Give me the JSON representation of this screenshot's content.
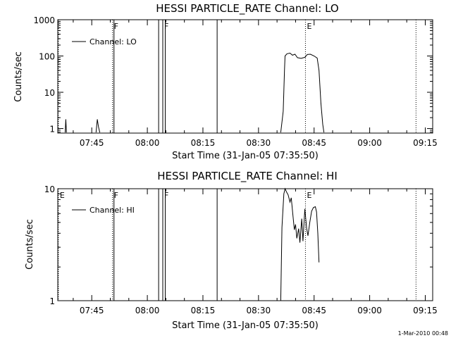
{
  "stamp": "1-Mar-2010 00:48",
  "chart_data": [
    {
      "type": "line",
      "title": "HESSI PARTICLE_RATE Channel: LO",
      "xlabel": "Start Time (31-Jan-05 07:35:50)",
      "ylabel": "Counts/sec",
      "yscale": "log",
      "xlim": [
        "07:35:50",
        "09:17:00"
      ],
      "ylim": [
        0.75,
        1000
      ],
      "yticks": [
        1,
        10,
        100,
        1000
      ],
      "ytick_labels": [
        "1",
        "10",
        "100",
        "1000"
      ],
      "xticks": [
        "07:45",
        "08:00",
        "08:15",
        "08:30",
        "08:45",
        "09:00",
        "09:15"
      ],
      "legend": {
        "position": "top-left",
        "entries": [
          "Channel: LO"
        ]
      },
      "color": "#000000",
      "markers": [
        {
          "time": "07:36:00",
          "label": "",
          "style": "dotted"
        },
        {
          "time": "07:50:36",
          "label": "F",
          "style": "dotted"
        },
        {
          "time": "07:51:00",
          "label": "",
          "style": "solid"
        },
        {
          "time": "08:03:03",
          "label": "",
          "style": "solid"
        },
        {
          "time": "08:04:10",
          "label": "F",
          "style": "solid"
        },
        {
          "time": "08:04:50",
          "label": "",
          "style": "solid"
        },
        {
          "time": "08:18:50",
          "label": "",
          "style": "solid"
        },
        {
          "time": "08:42:40",
          "label": "E",
          "style": "dotted"
        },
        {
          "time": "09:12:30",
          "label": "",
          "style": "dotted"
        }
      ],
      "series": [
        {
          "name": "Channel: LO",
          "segments": [
            [
              {
                "x": "07:37:50",
                "y": 0.78
              },
              {
                "x": "07:38:00",
                "y": 1.8
              },
              {
                "x": "07:38:10",
                "y": 0.78
              }
            ],
            [
              {
                "x": "07:46:10",
                "y": 0.78
              },
              {
                "x": "07:46:30",
                "y": 1.8
              },
              {
                "x": "07:46:50",
                "y": 1.1
              },
              {
                "x": "07:47:10",
                "y": 0.78
              }
            ],
            [
              {
                "x": "08:36:00",
                "y": 0.78
              },
              {
                "x": "08:36:40",
                "y": 3
              },
              {
                "x": "08:37:00",
                "y": 40
              },
              {
                "x": "08:37:10",
                "y": 100
              },
              {
                "x": "08:37:40",
                "y": 115
              },
              {
                "x": "08:38:30",
                "y": 120
              },
              {
                "x": "08:39:10",
                "y": 105
              },
              {
                "x": "08:39:50",
                "y": 112
              },
              {
                "x": "08:40:30",
                "y": 90
              },
              {
                "x": "08:41:30",
                "y": 86
              },
              {
                "x": "08:42:30",
                "y": 92
              },
              {
                "x": "08:43:10",
                "y": 110
              },
              {
                "x": "08:44:00",
                "y": 112
              },
              {
                "x": "08:45:00",
                "y": 100
              },
              {
                "x": "08:45:50",
                "y": 88
              },
              {
                "x": "08:46:20",
                "y": 40
              },
              {
                "x": "08:46:50",
                "y": 5
              },
              {
                "x": "08:47:20",
                "y": 1.3
              },
              {
                "x": "08:47:40",
                "y": 0.78
              }
            ]
          ]
        }
      ]
    },
    {
      "type": "line",
      "title": "HESSI PARTICLE_RATE Channel: HI",
      "xlabel": "Start Time (31-Jan-05 07:35:50)",
      "ylabel": "Counts/sec",
      "yscale": "log",
      "xlim": [
        "07:35:50",
        "09:17:00"
      ],
      "ylim": [
        1,
        10
      ],
      "yticks": [
        1,
        10
      ],
      "ytick_labels": [
        "1",
        "10"
      ],
      "xticks": [
        "07:45",
        "08:00",
        "08:15",
        "08:30",
        "08:45",
        "09:00",
        "09:15"
      ],
      "legend": {
        "position": "top-left",
        "entries": [
          "Channel: HI"
        ]
      },
      "color": "#000000",
      "markers": [
        {
          "time": "07:36:00",
          "label": "E",
          "style": "dotted"
        },
        {
          "time": "07:50:36",
          "label": "F",
          "style": "dotted"
        },
        {
          "time": "07:51:00",
          "label": "",
          "style": "solid"
        },
        {
          "time": "08:03:03",
          "label": "",
          "style": "solid"
        },
        {
          "time": "08:04:10",
          "label": "F",
          "style": "solid"
        },
        {
          "time": "08:04:50",
          "label": "",
          "style": "solid"
        },
        {
          "time": "08:18:50",
          "label": "",
          "style": "solid"
        },
        {
          "time": "08:42:40",
          "label": "E",
          "style": "dotted"
        },
        {
          "time": "09:12:30",
          "label": "",
          "style": "dotted"
        }
      ],
      "series": [
        {
          "name": "Channel: HI",
          "segments": [
            [
              {
                "x": "08:36:00",
                "y": 1
              },
              {
                "x": "08:36:20",
                "y": 4.5
              },
              {
                "x": "08:36:50",
                "y": 9
              },
              {
                "x": "08:37:10",
                "y": 10
              },
              {
                "x": "08:37:40",
                "y": 9.2
              },
              {
                "x": "08:38:00",
                "y": 8.8
              },
              {
                "x": "08:38:30",
                "y": 7.6
              },
              {
                "x": "08:38:50",
                "y": 8.3
              },
              {
                "x": "08:39:20",
                "y": 5.6
              },
              {
                "x": "08:39:40",
                "y": 4.3
              },
              {
                "x": "08:40:00",
                "y": 4.8
              },
              {
                "x": "08:40:20",
                "y": 3.6
              },
              {
                "x": "08:40:50",
                "y": 4.4
              },
              {
                "x": "08:41:10",
                "y": 3.3
              },
              {
                "x": "08:41:40",
                "y": 5.4
              },
              {
                "x": "08:42:00",
                "y": 3.4
              },
              {
                "x": "08:42:30",
                "y": 6.6
              },
              {
                "x": "08:43:00",
                "y": 4.4
              },
              {
                "x": "08:43:20",
                "y": 3.8
              },
              {
                "x": "08:43:50",
                "y": 5.0
              },
              {
                "x": "08:44:20",
                "y": 6.3
              },
              {
                "x": "08:44:50",
                "y": 6.8
              },
              {
                "x": "08:45:20",
                "y": 6.9
              },
              {
                "x": "08:45:40",
                "y": 6.2
              },
              {
                "x": "08:46:00",
                "y": 4.0
              },
              {
                "x": "08:46:20",
                "y": 2.2
              }
            ]
          ]
        }
      ]
    }
  ]
}
